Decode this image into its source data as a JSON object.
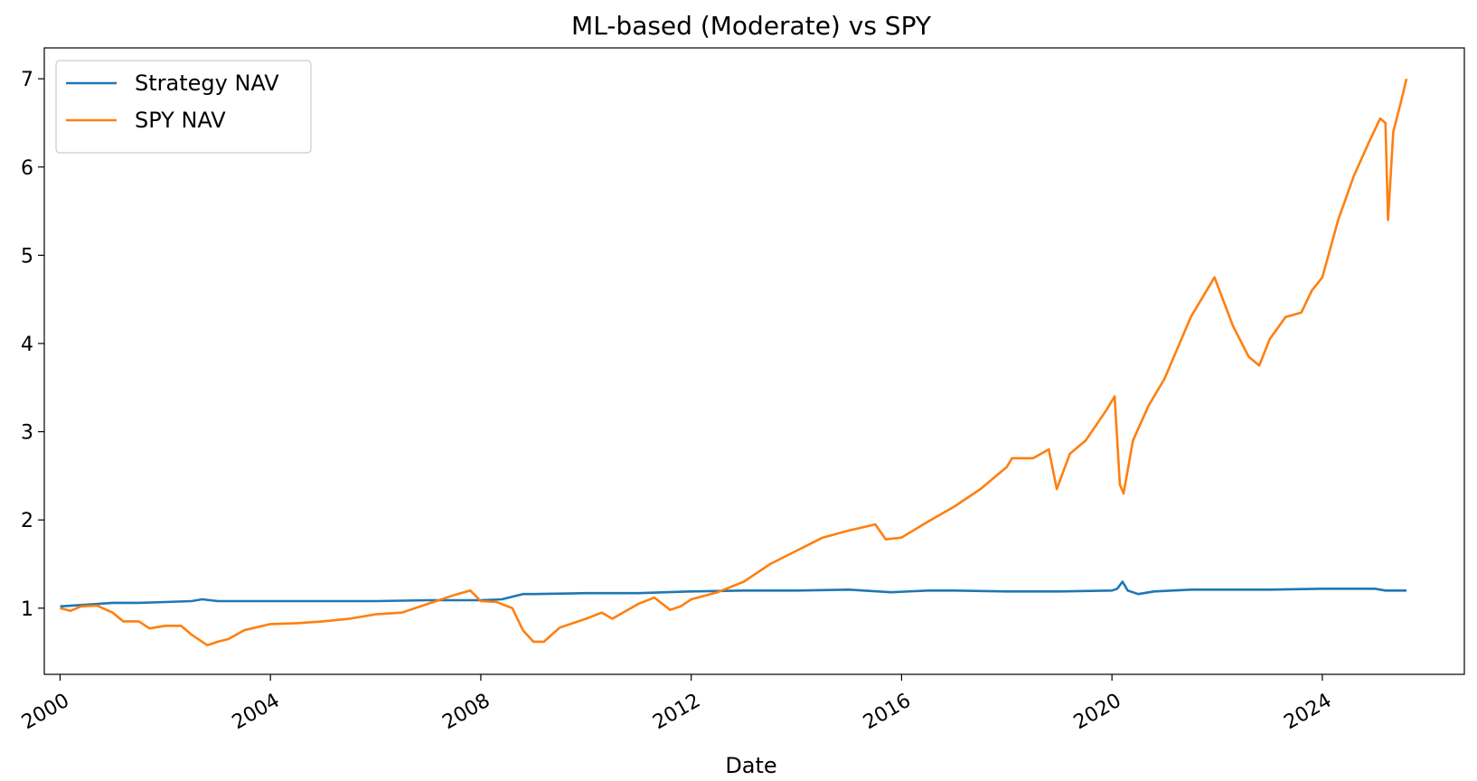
{
  "chart_data": {
    "type": "line",
    "title": "ML-based (Moderate) vs SPY",
    "xlabel": "Date",
    "ylabel": "",
    "xlim": [
      1999.7,
      2026.7
    ],
    "ylim": [
      0.25,
      7.35
    ],
    "x_ticks": [
      2000,
      2004,
      2008,
      2012,
      2016,
      2020,
      2024
    ],
    "x_tick_labels": [
      "2000",
      "2004",
      "2008",
      "2012",
      "2016",
      "2020",
      "2024"
    ],
    "y_ticks": [
      1,
      2,
      3,
      4,
      5,
      6,
      7
    ],
    "y_tick_labels": [
      "1",
      "2",
      "3",
      "4",
      "5",
      "6",
      "7"
    ],
    "grid": false,
    "legend_position": "upper-left",
    "series": [
      {
        "name": "Strategy NAV",
        "color": "#1f77b4",
        "x": [
          2000.0,
          2000.5,
          2001.0,
          2001.5,
          2002.0,
          2002.5,
          2002.7,
          2003.0,
          2004.0,
          2005.0,
          2006.0,
          2007.0,
          2008.0,
          2008.4,
          2008.6,
          2008.8,
          2009.0,
          2010.0,
          2011.0,
          2012.0,
          2013.0,
          2014.0,
          2015.0,
          2015.8,
          2016.5,
          2017.0,
          2018.0,
          2019.0,
          2020.0,
          2020.1,
          2020.2,
          2020.3,
          2020.5,
          2020.8,
          2021.5,
          2022.0,
          2023.0,
          2024.0,
          2025.0,
          2025.2,
          2025.6
        ],
        "y": [
          1.02,
          1.04,
          1.06,
          1.06,
          1.07,
          1.08,
          1.1,
          1.08,
          1.08,
          1.08,
          1.08,
          1.09,
          1.09,
          1.1,
          1.13,
          1.16,
          1.16,
          1.17,
          1.17,
          1.19,
          1.2,
          1.2,
          1.21,
          1.18,
          1.2,
          1.2,
          1.19,
          1.19,
          1.2,
          1.22,
          1.3,
          1.2,
          1.16,
          1.19,
          1.21,
          1.21,
          1.21,
          1.22,
          1.22,
          1.2,
          1.2
        ]
      },
      {
        "name": "SPY NAV",
        "color": "#ff7f0e",
        "x": [
          2000.0,
          2000.2,
          2000.4,
          2000.7,
          2001.0,
          2001.2,
          2001.5,
          2001.7,
          2002.0,
          2002.3,
          2002.5,
          2002.7,
          2002.8,
          2003.0,
          2003.2,
          2003.5,
          2004.0,
          2004.5,
          2005.0,
          2005.5,
          2006.0,
          2006.5,
          2007.0,
          2007.5,
          2007.8,
          2008.0,
          2008.3,
          2008.6,
          2008.8,
          2009.0,
          2009.2,
          2009.5,
          2010.0,
          2010.3,
          2010.5,
          2011.0,
          2011.3,
          2011.6,
          2011.8,
          2012.0,
          2012.5,
          2013.0,
          2013.5,
          2014.0,
          2014.5,
          2015.0,
          2015.5,
          2015.7,
          2016.0,
          2016.5,
          2017.0,
          2017.5,
          2018.0,
          2018.1,
          2018.5,
          2018.8,
          2018.95,
          2019.2,
          2019.5,
          2019.9,
          2020.05,
          2020.15,
          2020.22,
          2020.4,
          2020.7,
          2021.0,
          2021.5,
          2021.95,
          2022.3,
          2022.6,
          2022.8,
          2023.0,
          2023.3,
          2023.6,
          2023.8,
          2024.0,
          2024.3,
          2024.6,
          2024.9,
          2025.1,
          2025.2,
          2025.25,
          2025.35,
          2025.5,
          2025.6
        ],
        "y": [
          1.0,
          0.97,
          1.02,
          1.03,
          0.95,
          0.85,
          0.85,
          0.77,
          0.8,
          0.8,
          0.7,
          0.62,
          0.58,
          0.62,
          0.65,
          0.75,
          0.82,
          0.83,
          0.85,
          0.88,
          0.93,
          0.95,
          1.05,
          1.15,
          1.2,
          1.08,
          1.07,
          1.0,
          0.75,
          0.62,
          0.62,
          0.78,
          0.88,
          0.95,
          0.88,
          1.05,
          1.12,
          0.98,
          1.02,
          1.1,
          1.18,
          1.3,
          1.5,
          1.65,
          1.8,
          1.88,
          1.95,
          1.78,
          1.8,
          1.98,
          2.15,
          2.35,
          2.6,
          2.7,
          2.7,
          2.8,
          2.35,
          2.75,
          2.9,
          3.25,
          3.4,
          2.4,
          2.3,
          2.9,
          3.3,
          3.6,
          4.3,
          4.75,
          4.2,
          3.85,
          3.75,
          4.05,
          4.3,
          4.35,
          4.6,
          4.75,
          5.4,
          5.9,
          6.3,
          6.55,
          6.5,
          5.4,
          6.4,
          6.75,
          7.0
        ]
      }
    ]
  }
}
